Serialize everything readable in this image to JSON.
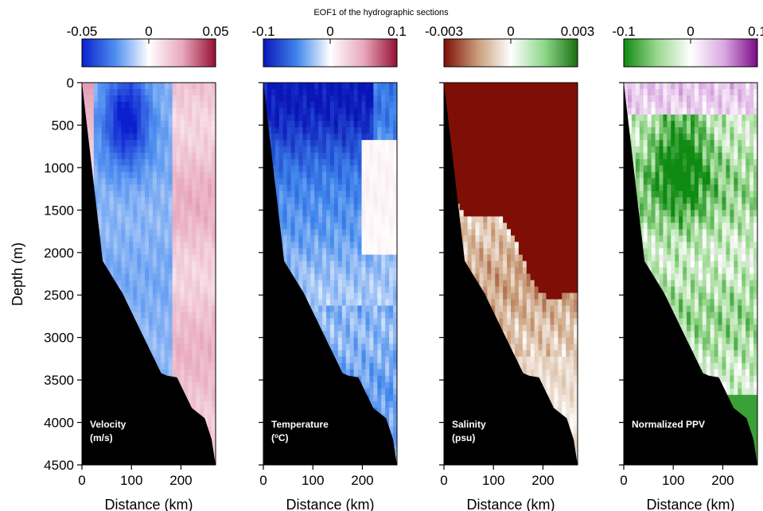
{
  "figure": {
    "title": "EOF1 of the hydrographic sections"
  },
  "chart_data": [
    {
      "type": "heatmap",
      "xlabel": "Distance (km)",
      "ylabel": "Depth (m)",
      "xlim": [
        0,
        270
      ],
      "ylim": [
        4500,
        0
      ],
      "xticks": [
        "0",
        "100",
        "200"
      ],
      "yticks": [
        "0",
        "500",
        "1000",
        "1500",
        "2000",
        "2500",
        "3000",
        "3500",
        "4000",
        "4500"
      ],
      "colorbar": {
        "ticks": [
          "-0.05",
          "0",
          "0.05"
        ],
        "range": [
          -0.05,
          0.05
        ],
        "colors": [
          "#0b1fcf",
          "#4f8ff0",
          "#ffffff",
          "#e8a8bd",
          "#960f32"
        ]
      },
      "label_lines": [
        "Velocity",
        "(m/s)"
      ],
      "pattern": "velocity"
    },
    {
      "type": "heatmap",
      "xlabel": "Distance (km)",
      "xlim": [
        0,
        270
      ],
      "ylim": [
        4500,
        0
      ],
      "xticks": [
        "0",
        "100",
        "200"
      ],
      "colorbar": {
        "ticks": [
          "-0.1",
          "0",
          "0.1"
        ],
        "range": [
          -0.1,
          0.1
        ],
        "colors": [
          "#0a15b8",
          "#3f86ec",
          "#ffffff",
          "#e8a8bd",
          "#960f32"
        ]
      },
      "label_lines": [
        "Temperature",
        "(oC)"
      ],
      "pattern": "temperature"
    },
    {
      "type": "heatmap",
      "xlabel": "Distance (km)",
      "xlim": [
        0,
        270
      ],
      "ylim": [
        4500,
        0
      ],
      "xticks": [
        "0",
        "100",
        "200"
      ],
      "colorbar": {
        "ticks": [
          "-0.003",
          "0",
          "0.003"
        ],
        "range": [
          -0.003,
          0.003
        ],
        "colors": [
          "#7e0f06",
          "#c89c77",
          "#ffffff",
          "#8ed88a",
          "#1a7010"
        ]
      },
      "label_lines": [
        "Salinity",
        "(psu)"
      ],
      "pattern": "salinity"
    },
    {
      "type": "heatmap",
      "xlabel": "Distance (km)",
      "xlim": [
        0,
        270
      ],
      "ylim": [
        4500,
        0
      ],
      "xticks": [
        "0",
        "100",
        "200"
      ],
      "colorbar": {
        "ticks": [
          "-0.1",
          "0",
          "0.1"
        ],
        "range": [
          -0.1,
          0.1
        ],
        "colors": [
          "#0f8a12",
          "#9ad88f",
          "#ffffff",
          "#d9a9e0",
          "#7a0a88"
        ]
      },
      "label_lines": [
        "Normalized  PPV"
      ],
      "pattern": "ppv"
    }
  ],
  "bathymetry": {
    "distance_km": [
      0,
      42,
      82,
      125,
      160,
      172,
      192,
      222,
      248,
      262,
      270
    ],
    "depth_m": [
      0,
      2100,
      2480,
      3000,
      3420,
      3450,
      3470,
      3830,
      3950,
      4200,
      4500
    ]
  },
  "colors": {
    "land": "#000000",
    "background": "#ffffff"
  }
}
